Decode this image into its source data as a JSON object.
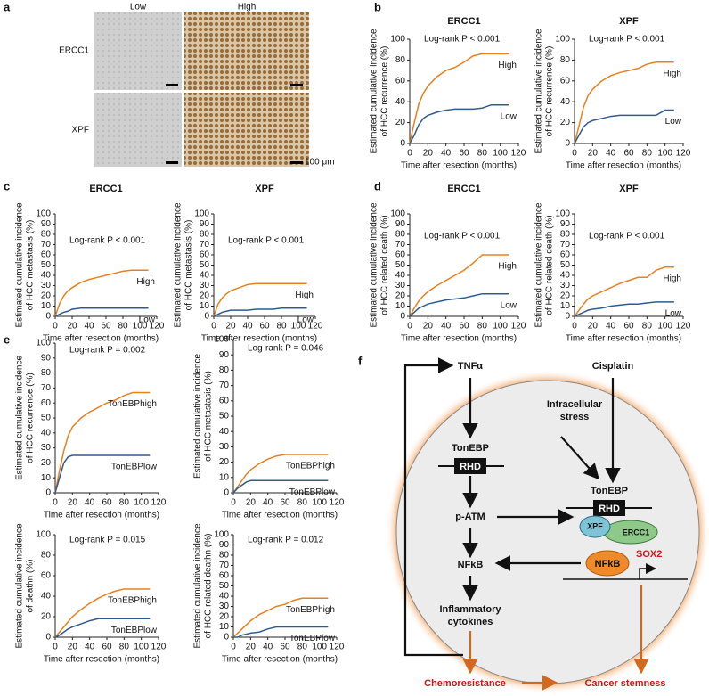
{
  "panels": [
    "a",
    "b",
    "c",
    "d",
    "e",
    "f"
  ],
  "images": {
    "columns": [
      "Low",
      "High"
    ],
    "rows": [
      "ERCC1",
      "XPF"
    ],
    "scale": "100 μm"
  },
  "chart_data": [
    {
      "type": "line",
      "title": "ERCC1",
      "ylabel": [
        "Estimated cumulative incidence",
        "of HCC recurrence (%)"
      ],
      "xlabel": "Time after resection (months)",
      "annotation": "Log-rank P < 0.001",
      "x": [
        0,
        5,
        10,
        15,
        20,
        30,
        40,
        50,
        60,
        70,
        80,
        90,
        100,
        110
      ],
      "xlim": [
        0,
        120
      ],
      "xticks": [
        0,
        20,
        40,
        60,
        80,
        100,
        120
      ],
      "ylim": [
        0,
        100
      ],
      "yticks": [
        0,
        20,
        40,
        60,
        80,
        100
      ],
      "series": [
        {
          "name": "High",
          "color": "#e8801e",
          "values": [
            0,
            20,
            38,
            48,
            55,
            64,
            70,
            73,
            78,
            84,
            86,
            86,
            86,
            86
          ]
        },
        {
          "name": "Low",
          "color": "#2e5c8e",
          "values": [
            0,
            8,
            18,
            24,
            27,
            30,
            32,
            33,
            33,
            33,
            34,
            37,
            37,
            37
          ]
        }
      ]
    },
    {
      "type": "line",
      "title": "XPF",
      "ylabel": [
        "Estimated cumulative incidence",
        "of HCC recurrence (%)"
      ],
      "xlabel": "Time after resection (months)",
      "annotation": "Log-rank P < 0.001",
      "x": [
        0,
        5,
        10,
        15,
        20,
        30,
        40,
        50,
        60,
        70,
        80,
        90,
        100,
        110
      ],
      "xlim": [
        0,
        120
      ],
      "xticks": [
        0,
        20,
        40,
        60,
        80,
        100,
        120
      ],
      "ylim": [
        0,
        100
      ],
      "yticks": [
        0,
        20,
        40,
        60,
        80,
        100
      ],
      "series": [
        {
          "name": "High",
          "color": "#e8801e",
          "values": [
            0,
            17,
            35,
            46,
            52,
            60,
            65,
            68,
            70,
            72,
            76,
            78,
            78,
            78
          ]
        },
        {
          "name": "Low",
          "color": "#2e5c8e",
          "values": [
            0,
            8,
            16,
            20,
            22,
            24,
            26,
            27,
            27,
            27,
            27,
            27,
            32,
            32
          ]
        }
      ]
    },
    {
      "type": "line",
      "title": "ERCC1",
      "ylabel": [
        "Estimated cumulative incidence",
        "of HCC metastasis (%)"
      ],
      "xlabel": "Time after resection (months)",
      "annotation": "Log-rank P < 0.001",
      "x": [
        0,
        5,
        10,
        15,
        20,
        30,
        40,
        50,
        60,
        70,
        80,
        90,
        100,
        110
      ],
      "xlim": [
        0,
        120
      ],
      "xticks": [
        0,
        20,
        40,
        60,
        80,
        100,
        120
      ],
      "ylim": [
        0,
        100
      ],
      "yticks": [
        0,
        10,
        20,
        30,
        40,
        50,
        60,
        70,
        80,
        90,
        100
      ],
      "series": [
        {
          "name": "High",
          "color": "#e8801e",
          "values": [
            0,
            12,
            20,
            25,
            28,
            33,
            36,
            38,
            40,
            42,
            44,
            45,
            45,
            45
          ]
        },
        {
          "name": "Low",
          "color": "#2e5c8e",
          "values": [
            0,
            2,
            4,
            5,
            7,
            8,
            8,
            8,
            8,
            8,
            8,
            8,
            8,
            8
          ]
        }
      ]
    },
    {
      "type": "line",
      "title": "XPF",
      "ylabel": [
        "Estimated cumulative incidence",
        "of HCC metastasis (%)"
      ],
      "xlabel": "Time after resection (months)",
      "annotation": "Log-rank P < 0.001",
      "x": [
        0,
        5,
        10,
        15,
        20,
        30,
        40,
        50,
        60,
        70,
        80,
        90,
        100,
        110
      ],
      "xlim": [
        0,
        120
      ],
      "xticks": [
        0,
        20,
        40,
        60,
        80,
        100,
        120
      ],
      "ylim": [
        0,
        100
      ],
      "yticks": [
        0,
        10,
        20,
        30,
        40,
        50,
        60,
        70,
        80,
        90,
        100
      ],
      "series": [
        {
          "name": "High",
          "color": "#e8801e",
          "values": [
            0,
            12,
            18,
            22,
            25,
            28,
            31,
            32,
            32,
            32,
            32,
            32,
            32,
            32
          ]
        },
        {
          "name": "Low",
          "color": "#2e5c8e",
          "values": [
            0,
            2,
            4,
            5,
            6,
            6,
            6,
            7,
            7,
            7,
            8,
            8,
            8,
            8
          ]
        }
      ]
    },
    {
      "type": "line",
      "title": "ERCC1",
      "ylabel": [
        "Estimated cumulative incidence",
        "of HCC related death (%)"
      ],
      "xlabel": "Time after resection (months)",
      "annotation": "Log-rank P < 0.001",
      "x": [
        0,
        5,
        10,
        15,
        20,
        30,
        40,
        50,
        60,
        70,
        80,
        90,
        100,
        110
      ],
      "xlim": [
        0,
        120
      ],
      "xticks": [
        0,
        20,
        40,
        60,
        80,
        100,
        120
      ],
      "ylim": [
        0,
        100
      ],
      "yticks": [
        0,
        10,
        20,
        30,
        40,
        50,
        60,
        70,
        80,
        90,
        100
      ],
      "series": [
        {
          "name": "High",
          "color": "#e8801e",
          "values": [
            0,
            8,
            15,
            20,
            24,
            30,
            35,
            40,
            45,
            52,
            60,
            60,
            60,
            60
          ]
        },
        {
          "name": "Low",
          "color": "#2e5c8e",
          "values": [
            0,
            4,
            8,
            10,
            12,
            14,
            16,
            17,
            18,
            20,
            22,
            22,
            22,
            22
          ]
        }
      ]
    },
    {
      "type": "line",
      "title": "XPF",
      "ylabel": [
        "Estimated cumulative incidence",
        "of HCC related death (%)"
      ],
      "xlabel": "Time after resection (months)",
      "annotation": "Log-rank P < 0.001",
      "x": [
        0,
        5,
        10,
        15,
        20,
        30,
        40,
        50,
        60,
        70,
        80,
        90,
        100,
        110
      ],
      "xlim": [
        0,
        120
      ],
      "xticks": [
        0,
        20,
        40,
        60,
        80,
        100,
        120
      ],
      "ylim": [
        0,
        100
      ],
      "yticks": [
        0,
        10,
        20,
        30,
        40,
        50,
        60,
        70,
        80,
        90,
        100
      ],
      "series": [
        {
          "name": "High",
          "color": "#e8801e",
          "values": [
            0,
            6,
            12,
            17,
            20,
            24,
            28,
            32,
            35,
            38,
            38,
            45,
            48,
            48
          ]
        },
        {
          "name": "Low",
          "color": "#2e5c8e",
          "values": [
            0,
            2,
            4,
            6,
            7,
            8,
            10,
            11,
            12,
            12,
            13,
            14,
            14,
            14
          ]
        }
      ]
    },
    {
      "type": "line",
      "ylabel": [
        "Estimated cumulative incidence",
        "of HCC recurrence (%)"
      ],
      "xlabel": "Time after resection (months)",
      "annotation": "Log-rank P = 0.002",
      "x": [
        0,
        5,
        10,
        15,
        20,
        30,
        40,
        50,
        60,
        70,
        80,
        90,
        100,
        110
      ],
      "xlim": [
        0,
        120
      ],
      "xticks": [
        0,
        20,
        40,
        60,
        80,
        100,
        120
      ],
      "ylim": [
        0,
        100
      ],
      "yticks": [
        0,
        10,
        20,
        30,
        40,
        50,
        60,
        70,
        80,
        90,
        100
      ],
      "series": [
        {
          "name": "TonEBPhigh",
          "color": "#e8801e",
          "values": [
            0,
            15,
            28,
            38,
            44,
            50,
            54,
            57,
            60,
            62,
            65,
            67,
            67,
            67
          ]
        },
        {
          "name": "TonEBPlow",
          "color": "#2e5c8e",
          "values": [
            0,
            10,
            20,
            24,
            25,
            25,
            25,
            25,
            25,
            25,
            25,
            25,
            25,
            25
          ]
        }
      ]
    },
    {
      "type": "line",
      "ylabel": [
        "Estimated cumulative incidence",
        "of HCC metastasis (%)"
      ],
      "xlabel": "Time after resection (months)",
      "annotation": "Log-rank P = 0.046",
      "x": [
        0,
        5,
        10,
        15,
        20,
        30,
        40,
        50,
        60,
        70,
        80,
        90,
        100,
        110
      ],
      "xlim": [
        0,
        120
      ],
      "xticks": [
        0,
        20,
        40,
        60,
        80,
        100,
        120
      ],
      "ylim": [
        0,
        100
      ],
      "yticks": [
        0,
        10,
        20,
        30,
        40,
        50,
        60,
        70,
        80,
        90,
        100
      ],
      "series": [
        {
          "name": "TonEBPhigh",
          "color": "#e8801e",
          "values": [
            0,
            4,
            8,
            12,
            15,
            19,
            22,
            24,
            25,
            25,
            25,
            25,
            25,
            25
          ]
        },
        {
          "name": "TonEBPlow",
          "color": "#2e5c8e",
          "values": [
            0,
            3,
            5,
            7,
            8,
            8,
            8,
            8,
            8,
            8,
            8,
            8,
            8,
            8
          ]
        }
      ]
    },
    {
      "type": "line",
      "ylabel": [
        "Estimated cumulative incidence",
        "of deathn (%)"
      ],
      "xlabel": "Time after resection (months)",
      "annotation": "Log-rank P = 0.015",
      "x": [
        0,
        5,
        10,
        15,
        20,
        30,
        40,
        50,
        60,
        70,
        80,
        90,
        100,
        110
      ],
      "xlim": [
        0,
        120
      ],
      "xticks": [
        0,
        20,
        40,
        60,
        80,
        100,
        120
      ],
      "ylim": [
        0,
        100
      ],
      "yticks": [
        0,
        20,
        40,
        60,
        80,
        100
      ],
      "series": [
        {
          "name": "TonEBPhigh",
          "color": "#e8801e",
          "values": [
            0,
            5,
            10,
            15,
            20,
            27,
            33,
            38,
            42,
            45,
            47,
            47,
            47,
            47
          ]
        },
        {
          "name": "TonEBPlow",
          "color": "#2e5c8e",
          "values": [
            0,
            2,
            5,
            8,
            10,
            13,
            16,
            18,
            18,
            18,
            18,
            18,
            18,
            18
          ]
        }
      ]
    },
    {
      "type": "line",
      "ylabel": [
        "Estimated cumulative incidence",
        "of HCC related deathn (%)"
      ],
      "xlabel": "Time after resection (months)",
      "annotation": "Log-rank P = 0.012",
      "x": [
        0,
        5,
        10,
        15,
        20,
        30,
        40,
        50,
        60,
        70,
        80,
        90,
        100,
        110
      ],
      "xlim": [
        0,
        120
      ],
      "xticks": [
        0,
        20,
        40,
        60,
        80,
        100,
        120
      ],
      "ylim": [
        0,
        100
      ],
      "yticks": [
        0,
        10,
        20,
        30,
        40,
        50,
        60,
        70,
        80,
        90,
        100
      ],
      "series": [
        {
          "name": "TonEBPhigh",
          "color": "#e8801e",
          "values": [
            0,
            4,
            8,
            12,
            16,
            22,
            26,
            30,
            32,
            36,
            38,
            38,
            38,
            38
          ]
        },
        {
          "name": "TonEBPlow",
          "color": "#2e5c8e",
          "values": [
            0,
            0,
            2,
            3,
            4,
            5,
            8,
            10,
            10,
            10,
            10,
            10,
            10,
            10
          ]
        }
      ]
    }
  ],
  "diagram": {
    "tnf": "TNFα",
    "cisplatin": "Cisplatin",
    "stress": [
      "Intracellular",
      "stress"
    ],
    "tonebp_left": "TonEBP",
    "rhd_left": "RHD",
    "patm": "p-ATM",
    "nfkb_left": "NFkB",
    "cytokines": [
      "Inflammatory",
      "cytokines"
    ],
    "tonebp_right": "TonEBP",
    "rhd_right": "RHD",
    "xpf": "XPF",
    "ercc1": "ERCC1",
    "nfkb_right": "NFkB",
    "sox2": "SOX2",
    "chemoresistance": "Chemoresistance",
    "stemness": "Cancer stemness"
  }
}
